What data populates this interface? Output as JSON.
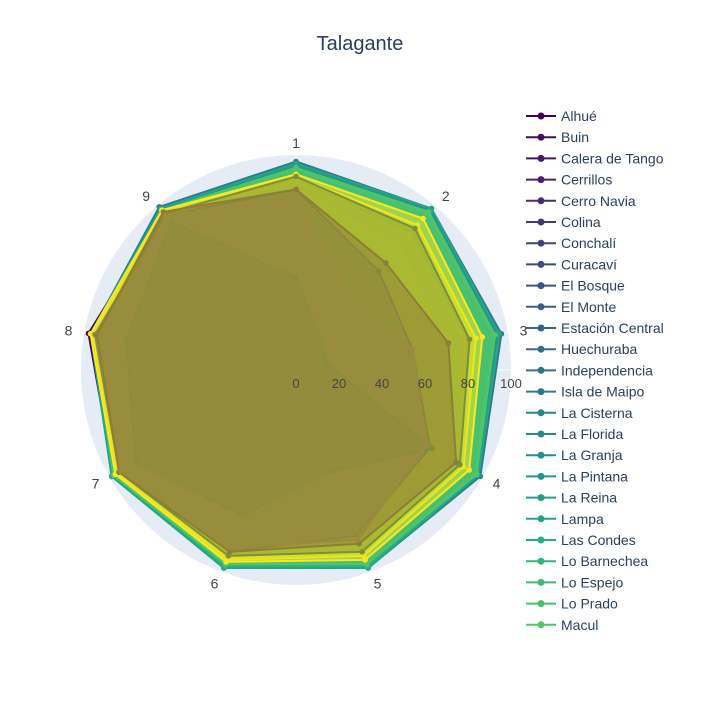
{
  "chart_data": {
    "type": "radar",
    "title": "Talagante",
    "theta_labels": [
      "1",
      "2",
      "3",
      "4",
      "5",
      "6",
      "7",
      "8",
      "9"
    ],
    "radial_range": [
      0,
      100
    ],
    "radial_ticks": [
      "0",
      "20",
      "40",
      "60",
      "80",
      "100"
    ],
    "fill": true,
    "grid": true,
    "legend_position": "right",
    "legend_entries": [
      "Alhué",
      "Buin",
      "Calera de Tango",
      "Cerrillos",
      "Cerro Navia",
      "Colina",
      "Conchalí",
      "Curacaví",
      "El Bosque",
      "El Monte",
      "Estación Central",
      "Huechuraba",
      "Independencia",
      "Isla de Maipo",
      "La Cisterna",
      "La Florida",
      "La Granja",
      "La Pintana",
      "La Reina",
      "Lampa",
      "Las Condes",
      "Lo Barnechea",
      "Lo Espejo",
      "Lo Prado",
      "Macul"
    ],
    "series": [
      {
        "name": "Alhué",
        "color": "#440154",
        "values": [
          94,
          95,
          92,
          96,
          95,
          96,
          98,
          98,
          96
        ]
      },
      {
        "name": "Buin",
        "color": "#450c5c",
        "values": [
          96,
          97,
          95,
          97,
          97,
          97,
          97,
          96,
          97
        ]
      },
      {
        "name": "Calera de Tango",
        "color": "#461764",
        "values": [
          95,
          96,
          94,
          95,
          96,
          97,
          98,
          97,
          97
        ]
      },
      {
        "name": "Cerrillos",
        "color": "#46226c",
        "values": [
          93,
          95,
          92,
          95,
          96,
          95,
          98,
          95,
          97
        ]
      },
      {
        "name": "Cerro Navia",
        "color": "#462c74",
        "values": [
          92,
          94,
          91,
          94,
          94,
          94,
          96,
          93,
          95
        ]
      },
      {
        "name": "Colina",
        "color": "#45377a",
        "values": [
          94,
          96,
          92,
          95,
          96,
          96,
          97,
          96,
          97
        ]
      },
      {
        "name": "Conchalí",
        "color": "#434180",
        "values": [
          93,
          95,
          91,
          94,
          95,
          95,
          96,
          94,
          96
        ]
      },
      {
        "name": "Curacaví",
        "color": "#404a84",
        "values": [
          95,
          97,
          94,
          96,
          97,
          97,
          98,
          97,
          97
        ]
      },
      {
        "name": "El Bosque",
        "color": "#3d5388",
        "values": [
          92,
          94,
          91,
          94,
          95,
          94,
          96,
          94,
          96
        ]
      },
      {
        "name": "El Monte",
        "color": "#3a5c8b",
        "values": [
          95,
          97,
          95,
          97,
          97,
          97,
          98,
          96,
          97
        ]
      },
      {
        "name": "Estación Central",
        "color": "#36648d",
        "values": [
          93,
          95,
          93,
          95,
          95,
          95,
          97,
          95,
          96
        ]
      },
      {
        "name": "Huechuraba",
        "color": "#336c8e",
        "values": [
          94,
          96,
          94,
          96,
          96,
          96,
          97,
          96,
          97
        ]
      },
      {
        "name": "Independencia",
        "color": "#30738e",
        "values": [
          94,
          97,
          94,
          96,
          96,
          96,
          98,
          96,
          97
        ]
      },
      {
        "name": "Isla de Maipo",
        "color": "#2d7b8e",
        "values": [
          97,
          98,
          97,
          99,
          98,
          98,
          99,
          97,
          99
        ]
      },
      {
        "name": "La Cisterna",
        "color": "#2a828e",
        "values": [
          93,
          95,
          93,
          95,
          95,
          95,
          97,
          95,
          96
        ]
      },
      {
        "name": "La Florida",
        "color": "#27898e",
        "values": [
          95,
          97,
          95,
          97,
          97,
          97,
          98,
          96,
          97
        ]
      },
      {
        "name": "La Granja",
        "color": "#24908d",
        "values": [
          92,
          95,
          92,
          95,
          95,
          95,
          97,
          94,
          96
        ]
      },
      {
        "name": "La Pintana",
        "color": "#21978b",
        "values": [
          95,
          96,
          94,
          96,
          96,
          96,
          97,
          95,
          96
        ]
      },
      {
        "name": "La Reina",
        "color": "#209f87",
        "values": [
          93,
          95,
          93,
          96,
          96,
          96,
          98,
          96,
          97
        ]
      },
      {
        "name": "Lampa",
        "color": "#22a685",
        "values": [
          96,
          98,
          96,
          98,
          98,
          98,
          99,
          97,
          98
        ]
      },
      {
        "name": "Las Condes",
        "color": "#27ad81",
        "values": [
          92,
          95,
          92,
          95,
          95,
          95,
          97,
          95,
          96
        ]
      },
      {
        "name": "Lo Barnechea",
        "color": "#31b47b",
        "values": [
          94,
          96,
          94,
          97,
          97,
          97,
          98,
          96,
          97
        ]
      },
      {
        "name": "Lo Espejo",
        "color": "#3cbb75",
        "values": [
          91,
          94,
          91,
          94,
          94,
          94,
          96,
          93,
          95
        ]
      },
      {
        "name": "Lo Prado",
        "color": "#47c16e",
        "values": [
          93,
          95,
          93,
          96,
          96,
          96,
          98,
          95,
          96
        ]
      },
      {
        "name": "Macul",
        "color": "#52c569",
        "values": [
          94,
          96,
          94,
          97,
          96,
          96,
          98,
          96,
          97
        ]
      },
      {
        "color": "#5ec962",
        "values": [
          82,
          85,
          75,
          82,
          84,
          86,
          90,
          88,
          92
        ]
      },
      {
        "color": "#75d054",
        "values": [
          75,
          55,
          65,
          80,
          82,
          84,
          92,
          90,
          83
        ]
      },
      {
        "color": "#8fd744",
        "values": [
          84,
          75,
          70,
          85,
          88,
          92,
          95,
          93,
          95
        ]
      },
      {
        "color": "#a8db34",
        "values": [
          88,
          82,
          80,
          88,
          90,
          93,
          96,
          95,
          96
        ]
      },
      {
        "color": "#c2df23",
        "values": [
          52,
          42,
          45,
          78,
          82,
          88,
          92,
          90,
          90
        ]
      },
      {
        "color": "#dde318",
        "values": [
          90,
          88,
          85,
          90,
          92,
          94,
          96,
          96,
          97
        ]
      },
      {
        "color": "#fde725",
        "values": [
          91,
          92,
          88,
          93,
          94,
          95,
          97,
          97,
          97
        ]
      },
      {
        "color": "#7c8f3a",
        "values": [
          90,
          86,
          82,
          88,
          90,
          92,
          95,
          94,
          95
        ]
      },
      {
        "color": "#8a8f45",
        "values": [
          84,
          60,
          55,
          72,
          82,
          90,
          95,
          95,
          94
        ]
      },
      {
        "color": "#6f9c40",
        "values": [
          43,
          18,
          15,
          73,
          50,
          72,
          86,
          80,
          90
        ]
      },
      {
        "color": "#8d7d3a",
        "values": [
          84,
          65,
          72,
          86,
          86,
          90,
          95,
          94,
          96
        ]
      },
      {
        "color": "#9c8a3e",
        "values": [
          80,
          40,
          55,
          70,
          84,
          88,
          94,
          92,
          94
        ]
      }
    ]
  }
}
